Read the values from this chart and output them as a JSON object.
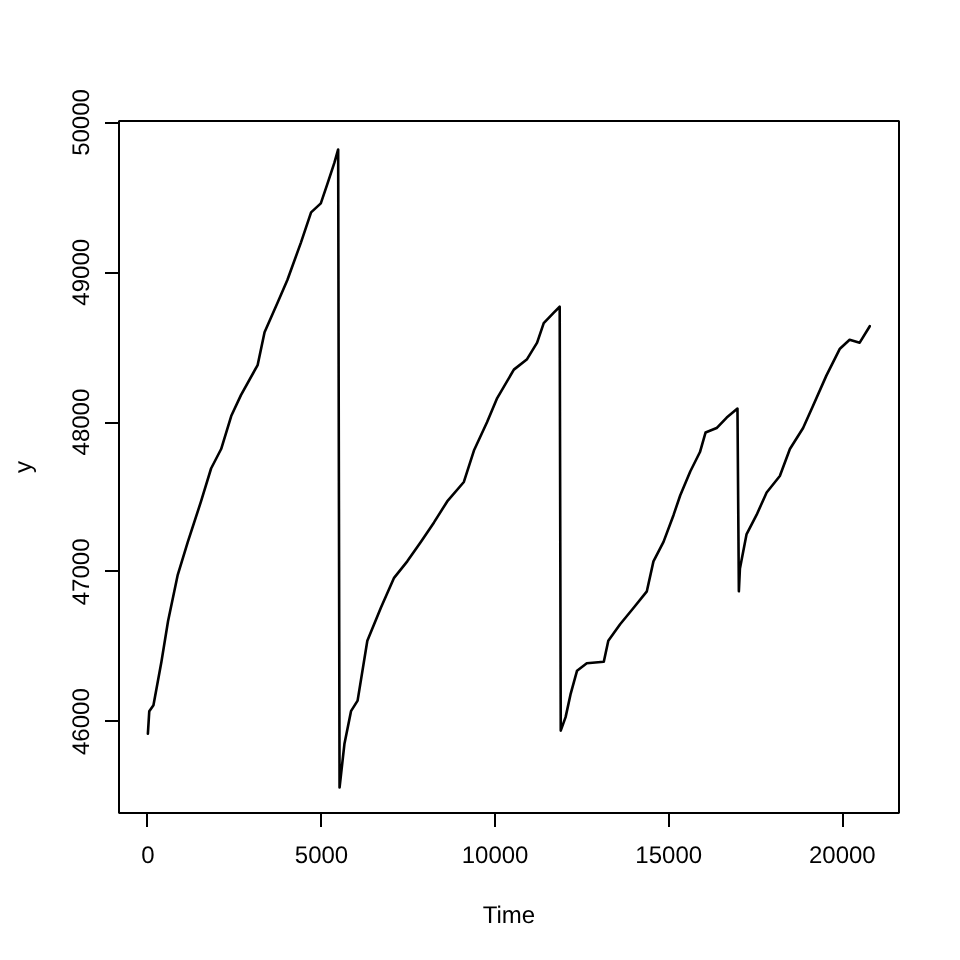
{
  "chart_data": {
    "type": "line",
    "xlabel": "Time",
    "ylabel": "y",
    "x": [
      0,
      40,
      160,
      390,
      580,
      860,
      1150,
      1530,
      1820,
      2110,
      2400,
      2680,
      3160,
      3360,
      3740,
      4020,
      4410,
      4700,
      4980,
      5170,
      5370,
      5480,
      5520,
      5660,
      5850,
      6040,
      6320,
      6710,
      7090,
      7470,
      7860,
      8240,
      8620,
      9100,
      9390,
      9770,
      10060,
      10540,
      10920,
      11210,
      11400,
      11690,
      11860,
      11890,
      12030,
      12170,
      12360,
      12640,
      13130,
      13260,
      13600,
      13990,
      14370,
      14560,
      14850,
      15140,
      15330,
      15620,
      15900,
      16060,
      16380,
      16670,
      16980,
      17020,
      17050,
      17240,
      17530,
      17820,
      18200,
      18490,
      18870,
      19160,
      19540,
      19930,
      20210,
      20500,
      20790
    ],
    "series": [
      {
        "color": "#000000",
        "values": [
          45920,
          46070,
          46110,
          46400,
          46670,
          46980,
          47200,
          47470,
          47690,
          47820,
          48040,
          48180,
          48380,
          48600,
          48800,
          48950,
          49200,
          49400,
          49460,
          49590,
          49730,
          49820,
          45560,
          45850,
          46070,
          46140,
          46540,
          46760,
          46960,
          47070,
          47200,
          47330,
          47470,
          47600,
          47810,
          48000,
          48160,
          48350,
          48420,
          48530,
          48660,
          48730,
          48770,
          45940,
          46030,
          46180,
          46340,
          46390,
          46400,
          46540,
          46650,
          46760,
          46870,
          47070,
          47200,
          47380,
          47510,
          47670,
          47800,
          47930,
          47960,
          48030,
          48090,
          46870,
          47020,
          47250,
          47380,
          47530,
          47640,
          47820,
          47960,
          48110,
          48310,
          48490,
          48550,
          48530,
          48640
        ]
      }
    ],
    "xlim": [
      -832,
      21632
    ],
    "ylim": [
      45390,
      50010
    ],
    "xticks": [
      0,
      5000,
      10000,
      15000,
      20000
    ],
    "yticks": [
      46000,
      47000,
      48000,
      49000,
      50000
    ],
    "grid": false
  }
}
